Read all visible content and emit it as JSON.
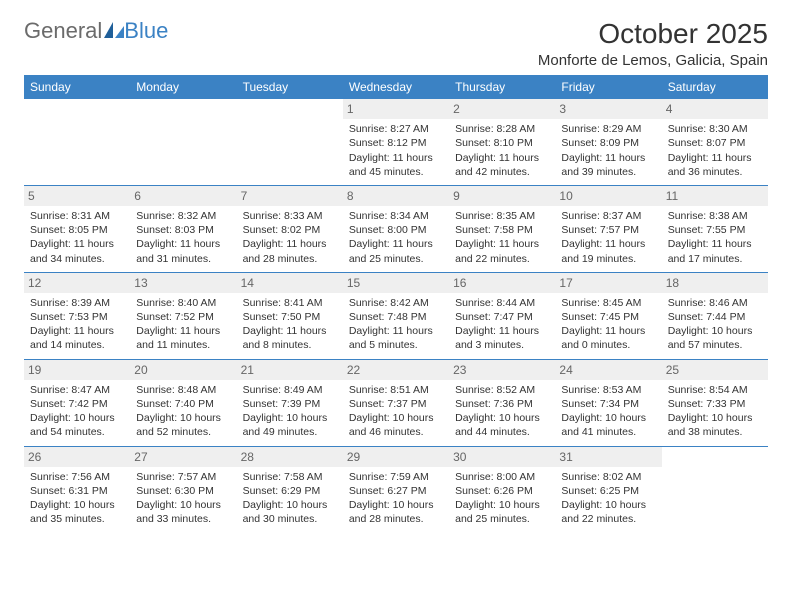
{
  "logo": {
    "text_general": "General",
    "text_blue": "Blue"
  },
  "title": "October 2025",
  "location": "Monforte de Lemos, Galicia, Spain",
  "colors": {
    "header_bg": "#3b82c4",
    "header_fg": "#ffffff",
    "border": "#3b82c4",
    "daynum_bg": "#efefef",
    "daynum_fg": "#666666",
    "text": "#333333",
    "logo_gray": "#6b6b6b",
    "logo_blue": "#3b82c4",
    "page_bg": "#ffffff"
  },
  "day_headers": [
    "Sunday",
    "Monday",
    "Tuesday",
    "Wednesday",
    "Thursday",
    "Friday",
    "Saturday"
  ],
  "weeks": [
    [
      {
        "n": "",
        "sr": "",
        "ss": "",
        "dl": ""
      },
      {
        "n": "",
        "sr": "",
        "ss": "",
        "dl": ""
      },
      {
        "n": "",
        "sr": "",
        "ss": "",
        "dl": ""
      },
      {
        "n": "1",
        "sr": "Sunrise: 8:27 AM",
        "ss": "Sunset: 8:12 PM",
        "dl": "Daylight: 11 hours and 45 minutes."
      },
      {
        "n": "2",
        "sr": "Sunrise: 8:28 AM",
        "ss": "Sunset: 8:10 PM",
        "dl": "Daylight: 11 hours and 42 minutes."
      },
      {
        "n": "3",
        "sr": "Sunrise: 8:29 AM",
        "ss": "Sunset: 8:09 PM",
        "dl": "Daylight: 11 hours and 39 minutes."
      },
      {
        "n": "4",
        "sr": "Sunrise: 8:30 AM",
        "ss": "Sunset: 8:07 PM",
        "dl": "Daylight: 11 hours and 36 minutes."
      }
    ],
    [
      {
        "n": "5",
        "sr": "Sunrise: 8:31 AM",
        "ss": "Sunset: 8:05 PM",
        "dl": "Daylight: 11 hours and 34 minutes."
      },
      {
        "n": "6",
        "sr": "Sunrise: 8:32 AM",
        "ss": "Sunset: 8:03 PM",
        "dl": "Daylight: 11 hours and 31 minutes."
      },
      {
        "n": "7",
        "sr": "Sunrise: 8:33 AM",
        "ss": "Sunset: 8:02 PM",
        "dl": "Daylight: 11 hours and 28 minutes."
      },
      {
        "n": "8",
        "sr": "Sunrise: 8:34 AM",
        "ss": "Sunset: 8:00 PM",
        "dl": "Daylight: 11 hours and 25 minutes."
      },
      {
        "n": "9",
        "sr": "Sunrise: 8:35 AM",
        "ss": "Sunset: 7:58 PM",
        "dl": "Daylight: 11 hours and 22 minutes."
      },
      {
        "n": "10",
        "sr": "Sunrise: 8:37 AM",
        "ss": "Sunset: 7:57 PM",
        "dl": "Daylight: 11 hours and 19 minutes."
      },
      {
        "n": "11",
        "sr": "Sunrise: 8:38 AM",
        "ss": "Sunset: 7:55 PM",
        "dl": "Daylight: 11 hours and 17 minutes."
      }
    ],
    [
      {
        "n": "12",
        "sr": "Sunrise: 8:39 AM",
        "ss": "Sunset: 7:53 PM",
        "dl": "Daylight: 11 hours and 14 minutes."
      },
      {
        "n": "13",
        "sr": "Sunrise: 8:40 AM",
        "ss": "Sunset: 7:52 PM",
        "dl": "Daylight: 11 hours and 11 minutes."
      },
      {
        "n": "14",
        "sr": "Sunrise: 8:41 AM",
        "ss": "Sunset: 7:50 PM",
        "dl": "Daylight: 11 hours and 8 minutes."
      },
      {
        "n": "15",
        "sr": "Sunrise: 8:42 AM",
        "ss": "Sunset: 7:48 PM",
        "dl": "Daylight: 11 hours and 5 minutes."
      },
      {
        "n": "16",
        "sr": "Sunrise: 8:44 AM",
        "ss": "Sunset: 7:47 PM",
        "dl": "Daylight: 11 hours and 3 minutes."
      },
      {
        "n": "17",
        "sr": "Sunrise: 8:45 AM",
        "ss": "Sunset: 7:45 PM",
        "dl": "Daylight: 11 hours and 0 minutes."
      },
      {
        "n": "18",
        "sr": "Sunrise: 8:46 AM",
        "ss": "Sunset: 7:44 PM",
        "dl": "Daylight: 10 hours and 57 minutes."
      }
    ],
    [
      {
        "n": "19",
        "sr": "Sunrise: 8:47 AM",
        "ss": "Sunset: 7:42 PM",
        "dl": "Daylight: 10 hours and 54 minutes."
      },
      {
        "n": "20",
        "sr": "Sunrise: 8:48 AM",
        "ss": "Sunset: 7:40 PM",
        "dl": "Daylight: 10 hours and 52 minutes."
      },
      {
        "n": "21",
        "sr": "Sunrise: 8:49 AM",
        "ss": "Sunset: 7:39 PM",
        "dl": "Daylight: 10 hours and 49 minutes."
      },
      {
        "n": "22",
        "sr": "Sunrise: 8:51 AM",
        "ss": "Sunset: 7:37 PM",
        "dl": "Daylight: 10 hours and 46 minutes."
      },
      {
        "n": "23",
        "sr": "Sunrise: 8:52 AM",
        "ss": "Sunset: 7:36 PM",
        "dl": "Daylight: 10 hours and 44 minutes."
      },
      {
        "n": "24",
        "sr": "Sunrise: 8:53 AM",
        "ss": "Sunset: 7:34 PM",
        "dl": "Daylight: 10 hours and 41 minutes."
      },
      {
        "n": "25",
        "sr": "Sunrise: 8:54 AM",
        "ss": "Sunset: 7:33 PM",
        "dl": "Daylight: 10 hours and 38 minutes."
      }
    ],
    [
      {
        "n": "26",
        "sr": "Sunrise: 7:56 AM",
        "ss": "Sunset: 6:31 PM",
        "dl": "Daylight: 10 hours and 35 minutes."
      },
      {
        "n": "27",
        "sr": "Sunrise: 7:57 AM",
        "ss": "Sunset: 6:30 PM",
        "dl": "Daylight: 10 hours and 33 minutes."
      },
      {
        "n": "28",
        "sr": "Sunrise: 7:58 AM",
        "ss": "Sunset: 6:29 PM",
        "dl": "Daylight: 10 hours and 30 minutes."
      },
      {
        "n": "29",
        "sr": "Sunrise: 7:59 AM",
        "ss": "Sunset: 6:27 PM",
        "dl": "Daylight: 10 hours and 28 minutes."
      },
      {
        "n": "30",
        "sr": "Sunrise: 8:00 AM",
        "ss": "Sunset: 6:26 PM",
        "dl": "Daylight: 10 hours and 25 minutes."
      },
      {
        "n": "31",
        "sr": "Sunrise: 8:02 AM",
        "ss": "Sunset: 6:25 PM",
        "dl": "Daylight: 10 hours and 22 minutes."
      },
      {
        "n": "",
        "sr": "",
        "ss": "",
        "dl": ""
      }
    ]
  ]
}
